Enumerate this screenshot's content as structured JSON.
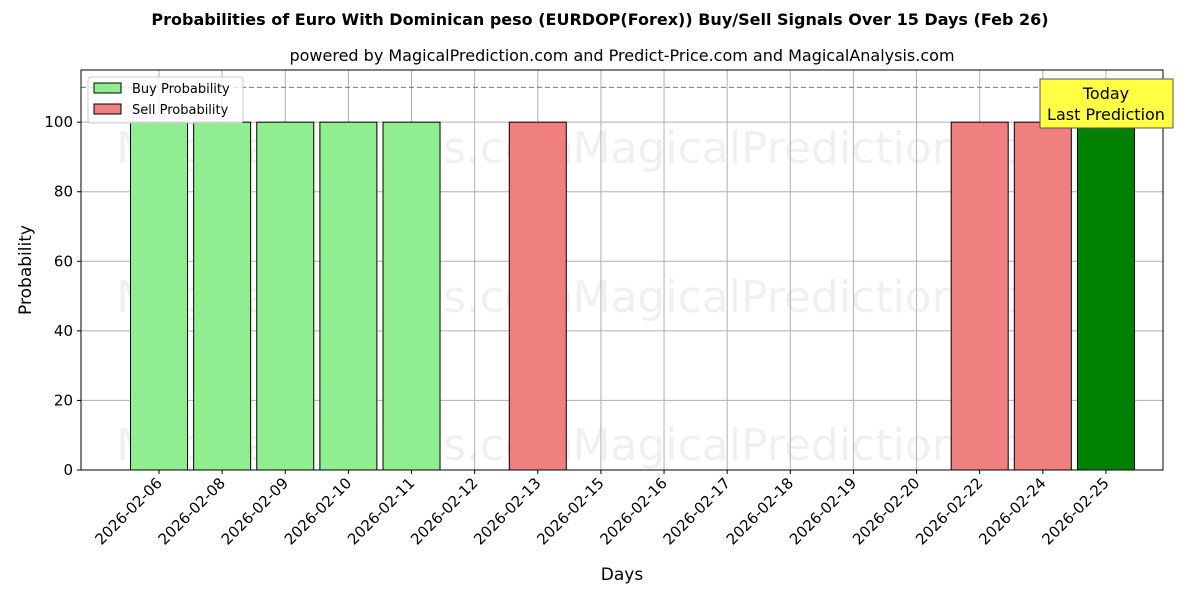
{
  "chart_data": {
    "type": "bar",
    "title": "Probabilities of Euro With Dominican peso (EURDOP(Forex)) Buy/Sell Signals Over 15 Days (Feb 26)",
    "subtitle": "powered by MagicalPrediction.com and Predict-Price.com and MagicalAnalysis.com",
    "xlabel": "Days",
    "ylabel": "Probability",
    "ylim": [
      0,
      115
    ],
    "yticks": [
      0,
      20,
      40,
      60,
      80,
      100
    ],
    "categories": [
      "2026-02-06",
      "2026-02-08",
      "2026-02-09",
      "2026-02-10",
      "2026-02-11",
      "2026-02-12",
      "2026-02-13",
      "2026-02-15",
      "2026-02-16",
      "2026-02-17",
      "2026-02-18",
      "2026-02-19",
      "2026-02-20",
      "2026-02-22",
      "2026-02-24",
      "2026-02-25"
    ],
    "series": [
      {
        "name": "Buy Probability",
        "color": "#90ee90",
        "values": [
          100,
          100,
          100,
          100,
          100,
          0,
          0,
          0,
          0,
          0,
          0,
          0,
          0,
          0,
          0,
          100
        ]
      },
      {
        "name": "Sell Probability",
        "color": "#f08080",
        "values": [
          0,
          0,
          0,
          0,
          0,
          0,
          100,
          0,
          0,
          0,
          0,
          0,
          0,
          100,
          100,
          0
        ]
      }
    ],
    "highlight": {
      "index": 15,
      "color": "#008000",
      "label": "Today\nLast Prediction",
      "label_bg": "#ffff44"
    },
    "reference_line": 110,
    "legend_position": "upper left",
    "grid": true,
    "watermarks": [
      "MagicalAnalysis.com",
      "MagicalPrediction.com"
    ]
  }
}
